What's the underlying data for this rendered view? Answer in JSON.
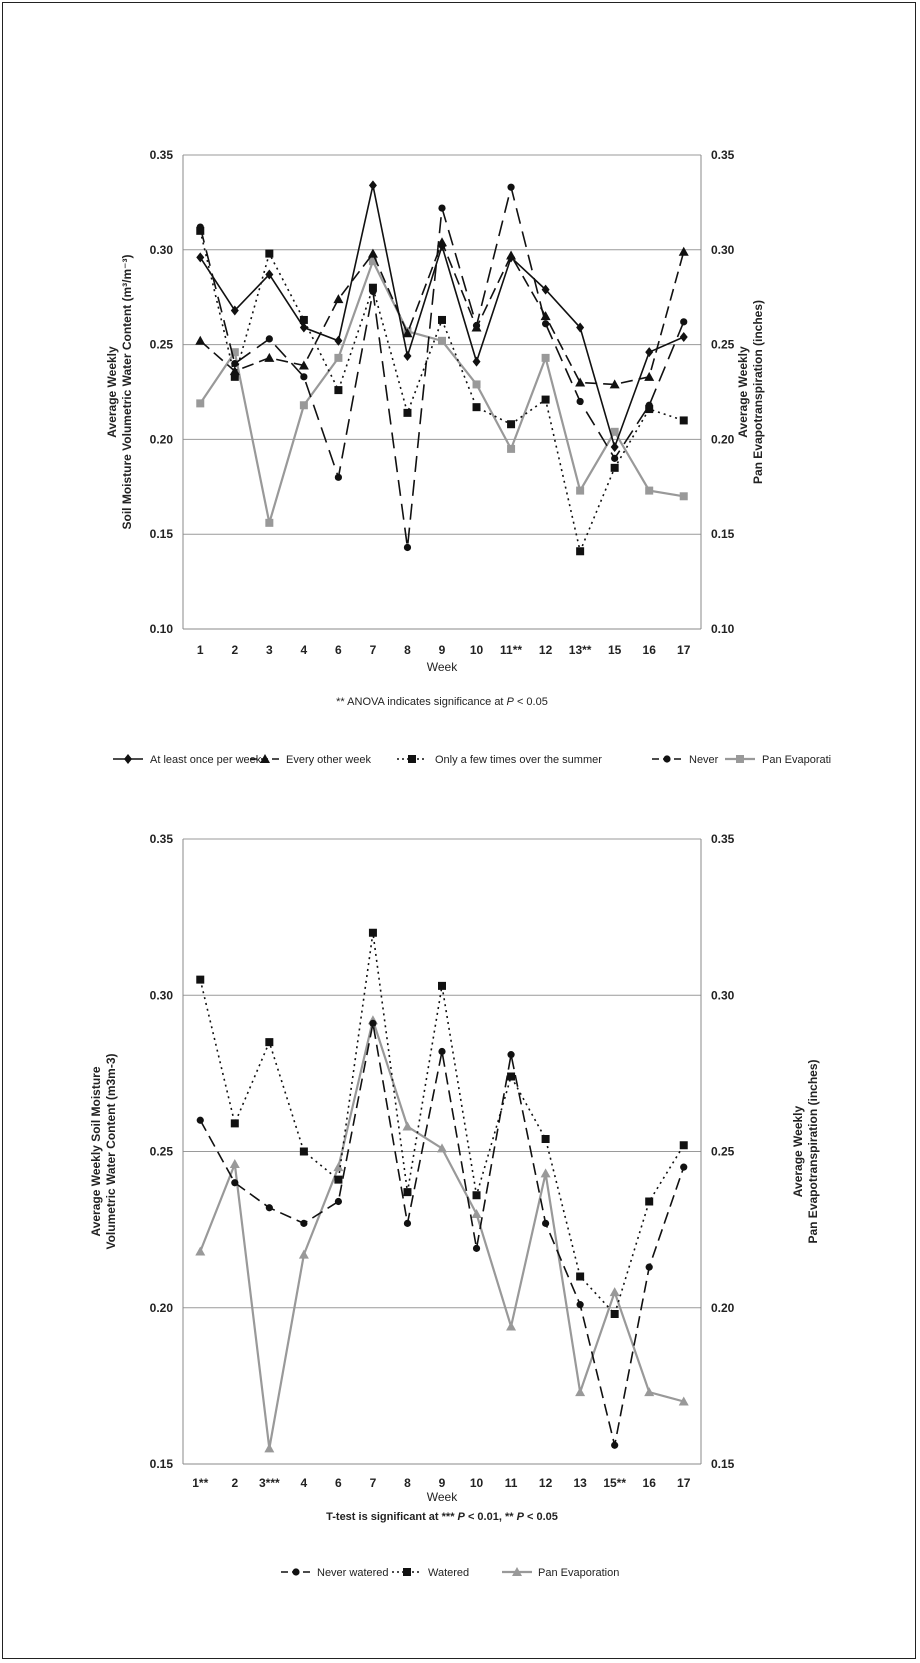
{
  "chart_data": [
    {
      "type": "line",
      "categories": [
        "1",
        "2",
        "3",
        "4",
        "6",
        "7",
        "8",
        "9",
        "10",
        "11**",
        "12",
        "13**",
        "15",
        "16",
        "17"
      ],
      "xlabel": "Week",
      "ylabel_lines": [
        "Average Weekly",
        "Soil Moisture Volumetric Water Content (m³/m⁻³)"
      ],
      "y2label_lines": [
        "Average Weekly",
        "Pan Evapotranspiration (inches)"
      ],
      "ylim": [
        0.1,
        0.35
      ],
      "yticks": [
        "0.10",
        "0.15",
        "0.20",
        "0.25",
        "0.30",
        "0.35"
      ],
      "y2ticks": [
        "0.10",
        "0.15",
        "0.20",
        "0.25",
        "0.30",
        "0.35"
      ],
      "grid": true,
      "note_prefix": "** ANOVA indicates significance at ",
      "note_p": "P",
      "note_suffix": " < 0.05",
      "legend_position": "bottom",
      "series": [
        {
          "name": "At least once per week",
          "color": "#111111",
          "dash": "",
          "marker": "diamond",
          "values": [
            0.296,
            0.268,
            0.287,
            0.259,
            0.252,
            0.334,
            0.244,
            0.302,
            0.241,
            0.296,
            0.279,
            0.259,
            0.196,
            0.246,
            0.254
          ]
        },
        {
          "name": "Every other week",
          "color": "#111111",
          "dash": "12,6",
          "marker": "triangle",
          "values": [
            0.252,
            0.236,
            0.243,
            0.239,
            0.274,
            0.298,
            0.256,
            0.304,
            0.259,
            0.297,
            0.265,
            0.23,
            0.229,
            0.233,
            0.299
          ]
        },
        {
          "name": "Only a few times over the summer",
          "color": "#111111",
          "dash": "2,4",
          "marker": "square",
          "values": [
            0.31,
            0.233,
            0.298,
            0.263,
            0.226,
            0.28,
            0.214,
            0.263,
            0.217,
            0.208,
            0.221,
            0.141,
            0.185,
            0.216,
            0.21
          ]
        },
        {
          "name": "Never",
          "color": "#111111",
          "dash": "16,8",
          "marker": "circle",
          "values": [
            0.312,
            0.24,
            0.253,
            0.233,
            0.18,
            0.278,
            0.143,
            0.322,
            0.26,
            0.333,
            0.261,
            0.22,
            0.19,
            0.218,
            0.262
          ]
        },
        {
          "name": "Pan Evaporati",
          "color": "#999999",
          "dash": "",
          "marker": "square",
          "values": [
            0.219,
            0.246,
            0.156,
            0.218,
            0.243,
            0.294,
            0.257,
            0.252,
            0.229,
            0.195,
            0.243,
            0.173,
            0.204,
            0.173,
            0.17
          ]
        }
      ]
    },
    {
      "type": "line",
      "categories": [
        "1**",
        "2",
        "3***",
        "4",
        "6",
        "7",
        "8",
        "9",
        "10",
        "11",
        "12",
        "13",
        "15**",
        "16",
        "17"
      ],
      "xlabel": "Week",
      "ylabel_lines": [
        "Average Weekly Soil Moisture",
        "Volumetric Water Content (m3m-3)"
      ],
      "y2label_lines": [
        "Average Weekly",
        "Pan Evapotranspiration (inches)"
      ],
      "ylim": [
        0.15,
        0.35
      ],
      "yticks": [
        "0.15",
        "0.20",
        "0.25",
        "0.30",
        "0.35"
      ],
      "y2ticks": [
        "0.15",
        "0.20",
        "0.25",
        "0.30",
        "0.35"
      ],
      "grid": true,
      "note_prefix": "T-test is significant at *** ",
      "note_p": "P",
      "note_mid": " < 0.01, ** ",
      "note_p2": "P",
      "note_suffix": " < 0.05",
      "legend_position": "bottom",
      "series": [
        {
          "name": "Never watered",
          "color": "#111111",
          "dash": "12,6",
          "marker": "circle",
          "values": [
            0.26,
            0.24,
            0.232,
            0.227,
            0.234,
            0.291,
            0.227,
            0.282,
            0.219,
            0.281,
            0.227,
            0.201,
            0.156,
            0.213,
            0.245
          ]
        },
        {
          "name": "Watered",
          "color": "#111111",
          "dash": "2,4",
          "marker": "square",
          "values": [
            0.305,
            0.259,
            0.285,
            0.25,
            0.241,
            0.32,
            0.237,
            0.303,
            0.236,
            0.274,
            0.254,
            0.21,
            0.198,
            0.234,
            0.252
          ]
        },
        {
          "name": "Pan Evaporation",
          "color": "#999999",
          "dash": "",
          "marker": "triangle",
          "values": [
            0.218,
            0.246,
            0.155,
            0.217,
            0.245,
            0.292,
            0.258,
            0.251,
            0.23,
            0.194,
            0.243,
            0.173,
            0.205,
            0.173,
            0.17
          ]
        }
      ]
    }
  ]
}
